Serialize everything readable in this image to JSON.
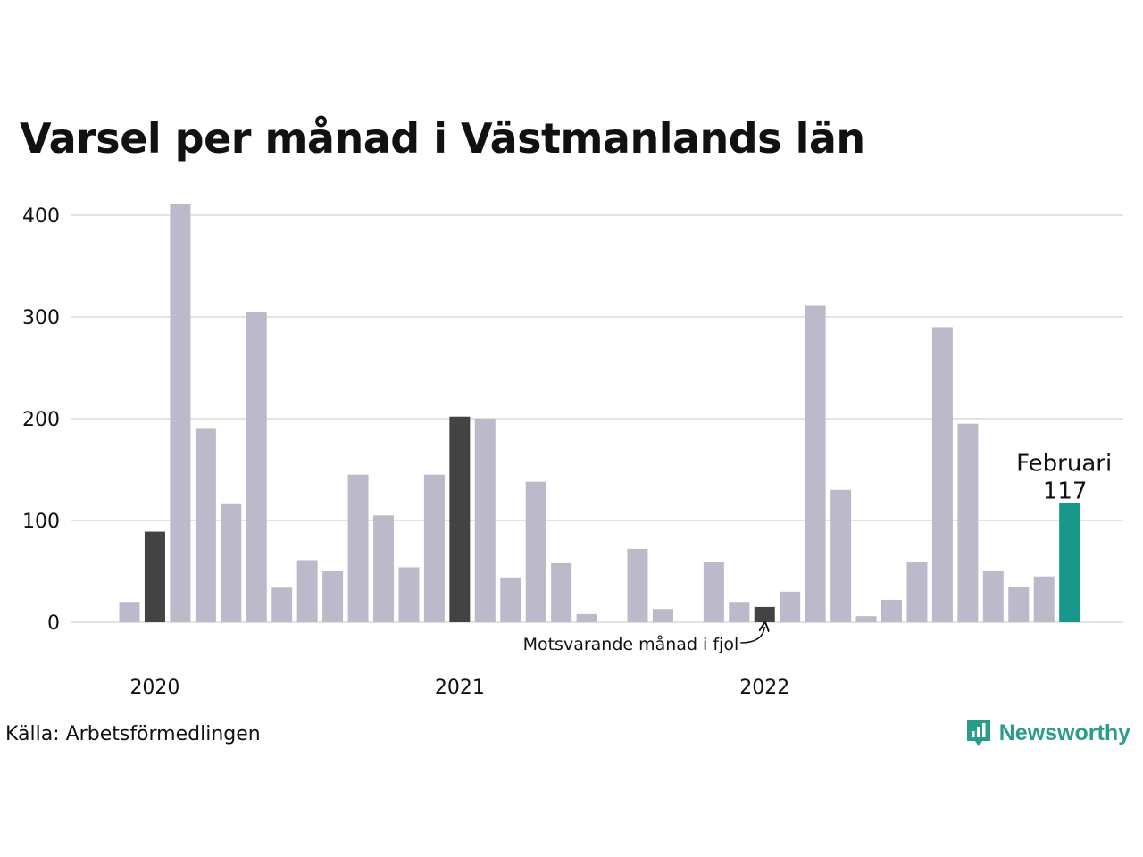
{
  "title": "Varsel per månad i Västmanlands län",
  "source": "Källa: Arbetsförmedlingen",
  "brand": {
    "name": "Newsworthy",
    "icon": "newsworthy-logo-icon"
  },
  "colors": {
    "bar": "#bcbaca",
    "comparison": "#434343",
    "highlight": "#18988b",
    "grid": "#e3e3e3",
    "brand": "#2a9c8a"
  },
  "chart_data": {
    "type": "bar",
    "title": "Varsel per månad i Västmanlands län",
    "xlabel": "",
    "ylabel": "",
    "ylim": [
      0,
      420
    ],
    "yticks": [
      0,
      100,
      200,
      300,
      400
    ],
    "grid": true,
    "x_year_labels": [
      {
        "label": "2020",
        "index": 1
      },
      {
        "label": "2021",
        "index": 13
      },
      {
        "label": "2022",
        "index": 25
      }
    ],
    "categories": [
      "2020-01",
      "2020-02",
      "2020-03",
      "2020-04",
      "2020-05",
      "2020-06",
      "2020-07",
      "2020-08",
      "2020-09",
      "2020-10",
      "2020-11",
      "2020-12",
      "2021-01",
      "2021-02",
      "2021-03",
      "2021-04",
      "2021-05",
      "2021-06",
      "2021-07",
      "2021-08",
      "2021-09",
      "2021-10",
      "2021-11",
      "2021-12",
      "2022-01",
      "2022-02",
      "2022-03",
      "2022-04",
      "2022-05",
      "2022-06",
      "2022-07",
      "2022-08",
      "2022-09",
      "2022-10",
      "2022-11",
      "2022-12",
      "2023-01",
      "2023-02"
    ],
    "values": [
      20,
      89,
      411,
      190,
      116,
      305,
      34,
      61,
      50,
      145,
      105,
      54,
      145,
      202,
      200,
      44,
      138,
      58,
      8,
      0,
      72,
      13,
      0,
      59,
      20,
      15,
      30,
      311,
      130,
      6,
      22,
      59,
      290,
      195,
      50,
      35,
      45,
      117
    ],
    "comparison_indices": [
      1,
      13,
      25
    ],
    "highlight_index": 37,
    "highlight_label": {
      "month": "Februari",
      "value": "117"
    },
    "annotation": {
      "text": "Motsvarande månad i fjol",
      "index": 25
    }
  }
}
